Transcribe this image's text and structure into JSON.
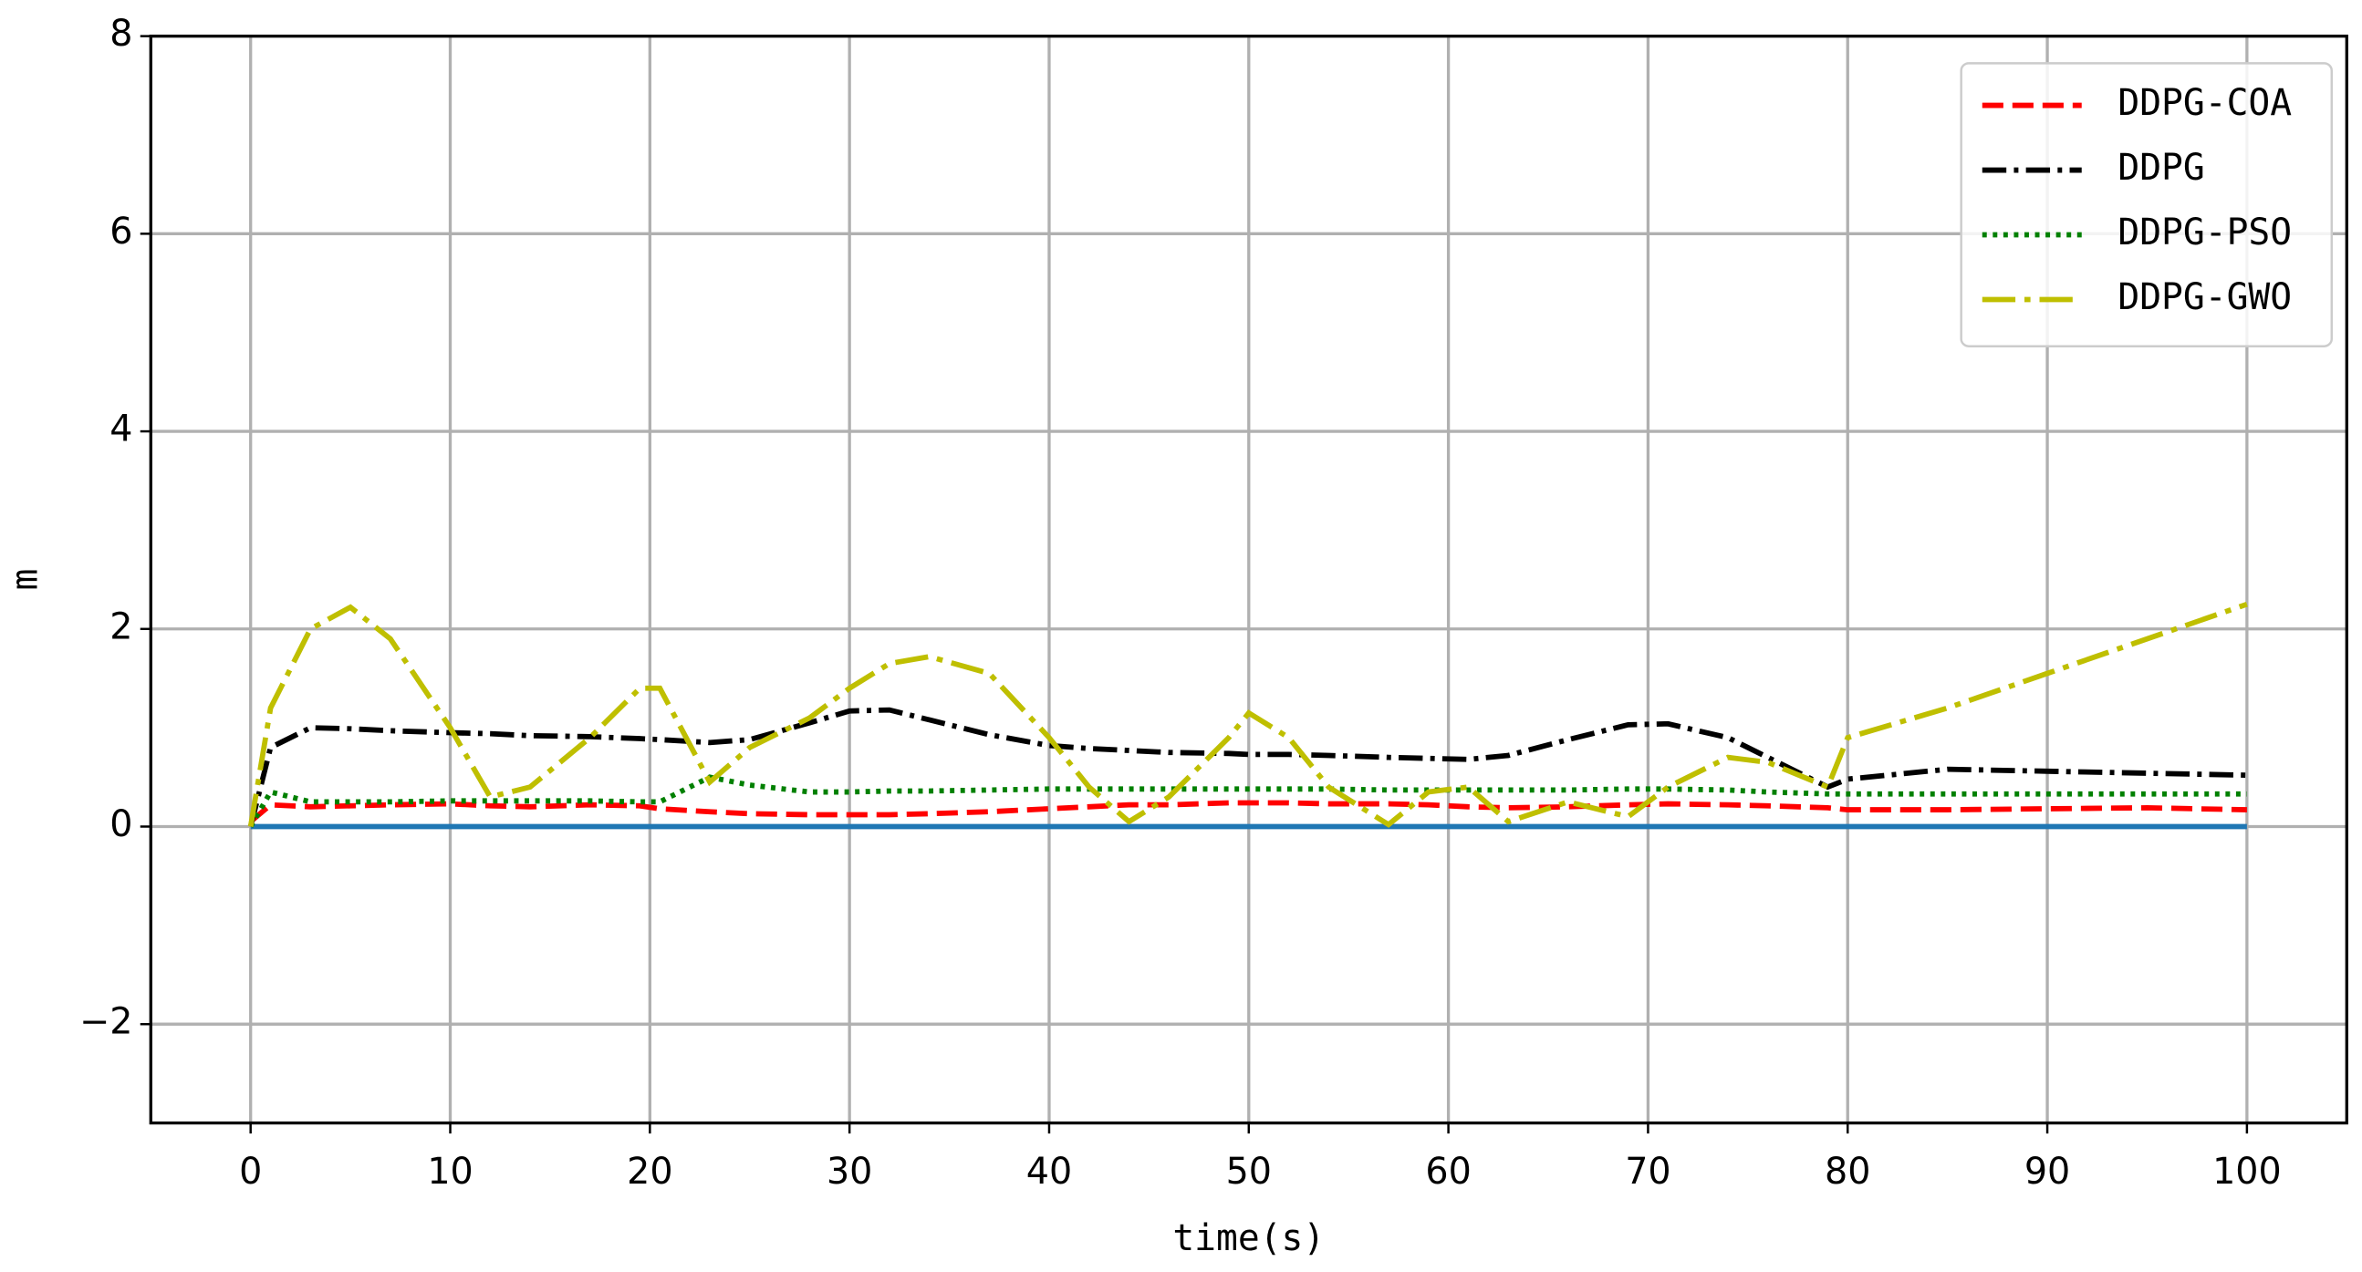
{
  "chart_data": {
    "type": "line",
    "xlabel": "time(s)",
    "ylabel": "m",
    "x": [
      0,
      1,
      3,
      5,
      7,
      10,
      12,
      14,
      17,
      19.5,
      20.5,
      23,
      25,
      28,
      30,
      32,
      34,
      37,
      40,
      42,
      44,
      46,
      49,
      50,
      52,
      54,
      57,
      59,
      61,
      63,
      66,
      69,
      71,
      74,
      76,
      79,
      80,
      85,
      90,
      95,
      100
    ],
    "series": [
      {
        "color": "#1f77b4",
        "style": "solid",
        "x": [
          0,
          100
        ],
        "values": [
          0,
          0
        ]
      },
      {
        "name": "DDPG-COA",
        "color": "#ff0000",
        "style": "dashed",
        "values": [
          0.05,
          0.22,
          0.2,
          0.21,
          0.22,
          0.23,
          0.21,
          0.2,
          0.22,
          0.21,
          0.18,
          0.15,
          0.13,
          0.12,
          0.12,
          0.12,
          0.13,
          0.15,
          0.18,
          0.2,
          0.22,
          0.22,
          0.24,
          0.24,
          0.24,
          0.23,
          0.23,
          0.22,
          0.2,
          0.19,
          0.2,
          0.22,
          0.23,
          0.22,
          0.21,
          0.19,
          0.17,
          0.17,
          0.18,
          0.19,
          0.17
        ]
      },
      {
        "name": "DDPG",
        "color": "#000000",
        "style": "dashdot",
        "values": [
          0,
          0.8,
          1.0,
          0.99,
          0.97,
          0.95,
          0.94,
          0.92,
          0.91,
          0.89,
          0.88,
          0.85,
          0.88,
          1.05,
          1.17,
          1.18,
          1.08,
          0.93,
          0.82,
          0.79,
          0.77,
          0.75,
          0.74,
          0.73,
          0.73,
          0.72,
          0.7,
          0.69,
          0.68,
          0.72,
          0.88,
          1.03,
          1.04,
          0.9,
          0.7,
          0.4,
          0.48,
          0.58,
          0.56,
          0.54,
          0.52
        ]
      },
      {
        "name": "DDPG-PSO",
        "color": "#008000",
        "style": "dotted",
        "values": [
          0,
          0.35,
          0.25,
          0.25,
          0.25,
          0.26,
          0.26,
          0.26,
          0.26,
          0.25,
          0.25,
          0.5,
          0.42,
          0.35,
          0.35,
          0.36,
          0.36,
          0.37,
          0.38,
          0.38,
          0.38,
          0.38,
          0.38,
          0.38,
          0.38,
          0.38,
          0.37,
          0.37,
          0.37,
          0.37,
          0.37,
          0.38,
          0.38,
          0.37,
          0.35,
          0.33,
          0.33,
          0.33,
          0.33,
          0.33,
          0.33
        ]
      },
      {
        "name": "DDPG-GWO",
        "color": "#bfbf00",
        "style": "longdashdot",
        "values": [
          0,
          1.2,
          2.0,
          2.22,
          1.9,
          1.0,
          0.3,
          0.4,
          0.9,
          1.4,
          1.4,
          0.45,
          0.8,
          1.1,
          1.4,
          1.65,
          1.72,
          1.55,
          0.9,
          0.4,
          0.05,
          0.3,
          0.9,
          1.15,
          0.9,
          0.4,
          0.02,
          0.35,
          0.4,
          0.05,
          0.25,
          0.1,
          0.4,
          0.7,
          0.65,
          0.4,
          0.9,
          1.2,
          1.55,
          1.9,
          2.25
        ]
      }
    ],
    "xlim": [
      -5,
      105
    ],
    "ylim": [
      -3,
      8
    ],
    "xticks": [
      0,
      10,
      20,
      30,
      40,
      50,
      60,
      70,
      80,
      90,
      100
    ],
    "yticks": [
      {
        "value": -2,
        "label": "−2"
      },
      0,
      2,
      4,
      6,
      8
    ],
    "grid": true,
    "legend": "upper right"
  }
}
